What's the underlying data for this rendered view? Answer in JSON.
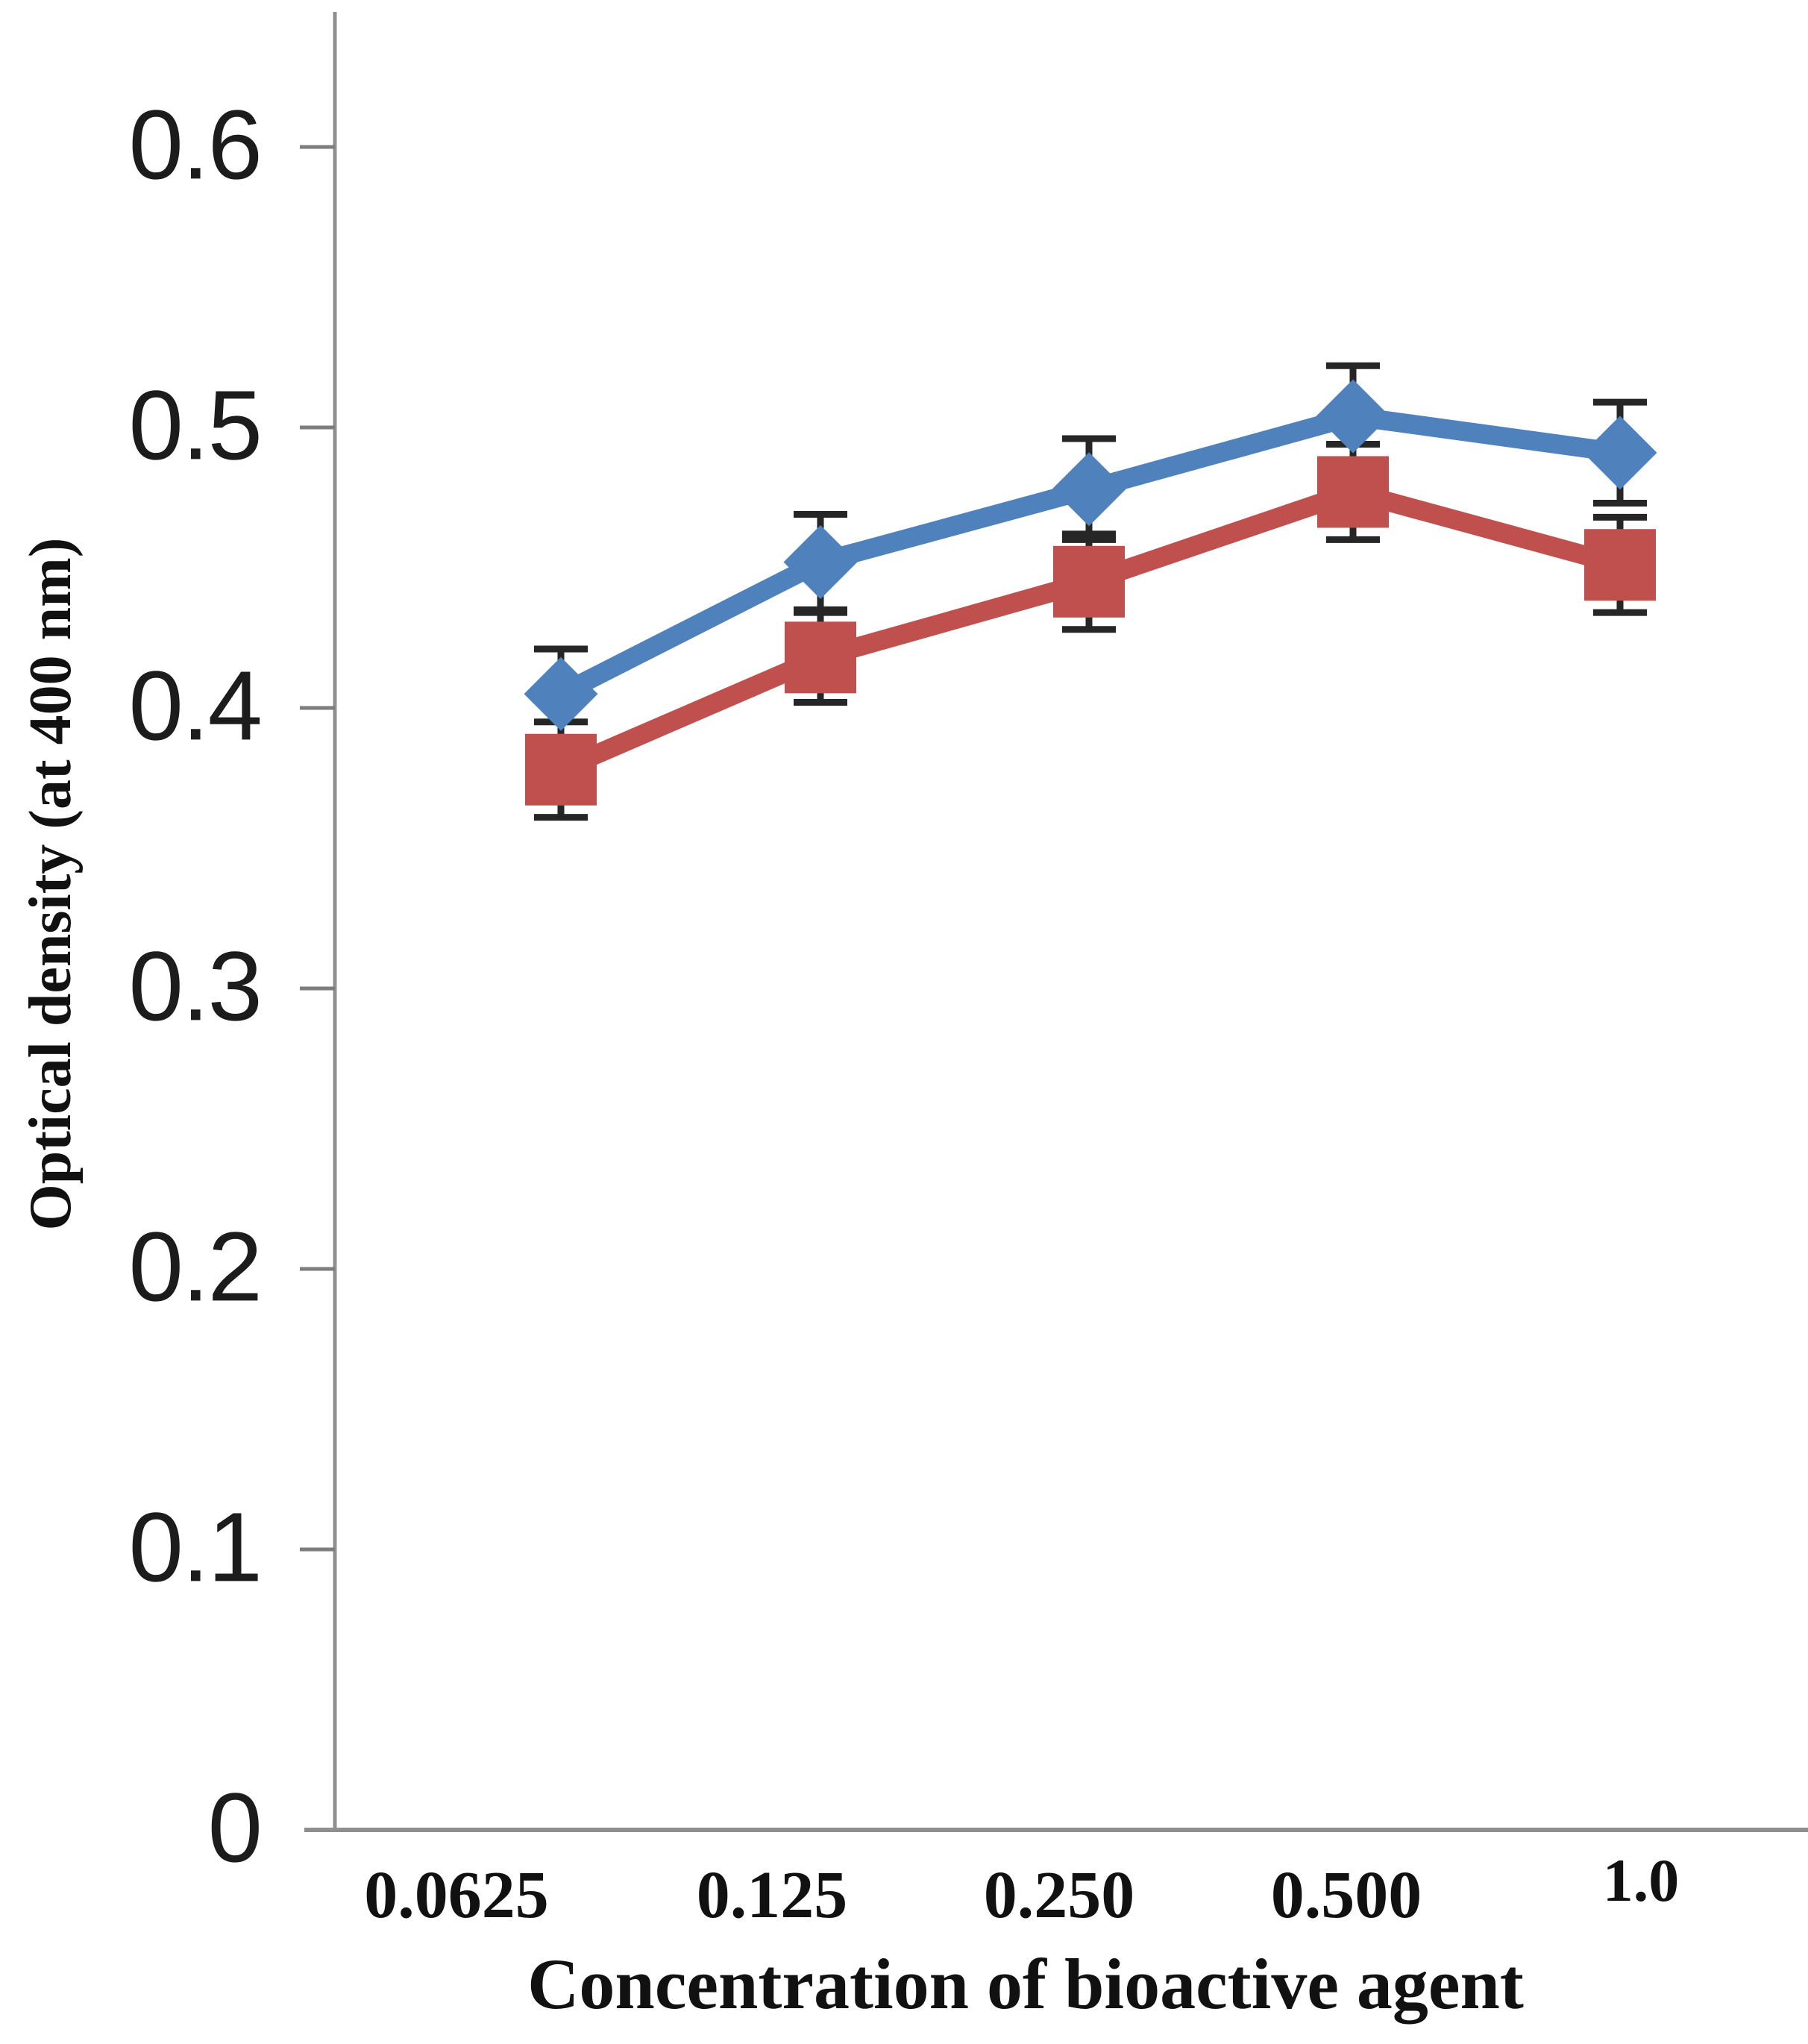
{
  "chart_data": {
    "type": "line",
    "title": "",
    "xlabel": "Concentration of bioactive agent",
    "ylabel": "Optical density (at 400 nm)",
    "categories": [
      "0.0625",
      "0.125",
      "0.250",
      "0.500",
      "1.0"
    ],
    "ytick_labels": [
      "0",
      "0.1",
      "0.2",
      "0.3",
      "0.4",
      "0.5",
      "0.6"
    ],
    "yticks": [
      0,
      0.1,
      0.2,
      0.3,
      0.4,
      0.5,
      0.6
    ],
    "ylim": [
      0,
      0.65
    ],
    "grid": "off",
    "legend": "none",
    "error_bar_color": "#262626",
    "axis_color": "#8f8f8f",
    "tick_color": "#7d7d7d",
    "series": [
      {
        "name": "blue-diamond-series",
        "marker": "diamond",
        "color": "#4f81bd",
        "values": [
          0.405,
          0.452,
          0.478,
          0.504,
          0.491
        ],
        "errors": [
          0.016,
          0.017,
          0.018,
          0.018,
          0.018
        ]
      },
      {
        "name": "red-square-series",
        "marker": "square",
        "color": "#c0504d",
        "values": [
          0.378,
          0.418,
          0.445,
          0.477,
          0.451
        ],
        "errors": [
          0.017,
          0.016,
          0.017,
          0.017,
          0.017
        ]
      }
    ]
  }
}
